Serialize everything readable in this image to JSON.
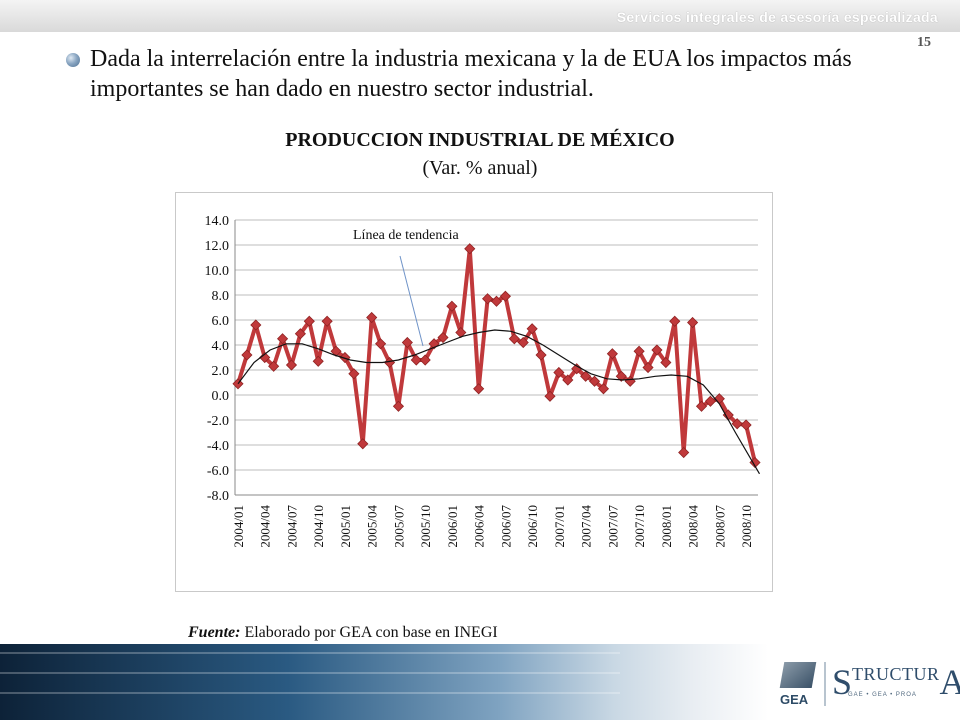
{
  "header": {
    "brand": "Servicios integrales de asesoría especializada",
    "page_number": "15"
  },
  "body": {
    "bullet_text": "Dada la interrelación entre la industria mexicana y la de EUA los impactos más importantes se han dado en nuestro sector industrial."
  },
  "source": {
    "label": "Fuente:",
    "text": " Elaborado por GEA con base en INEGI"
  },
  "logos": {
    "gea": "GEA",
    "structura_s": "S",
    "structura_mid": "TRUCTUR",
    "structura_a": "A",
    "structura_sub": "GAE • GEA • PROA"
  },
  "colors": {
    "series": "#c0393b",
    "trend": "#111111",
    "grid": "#bdbdbd"
  },
  "chart_data": {
    "type": "line",
    "title": "PRODUCCION INDUSTRIAL DE MÉXICO",
    "subtitle": "(Var. % anual)",
    "ylim": [
      -8,
      14
    ],
    "yticks": [
      "14.0",
      "12.0",
      "10.0",
      "8.0",
      "6.0",
      "4.0",
      "2.0",
      "0.0",
      "-2.0",
      "-4.0",
      "-6.0",
      "-8.0"
    ],
    "x_tick_labels": [
      "2004/01",
      "2004/04",
      "2004/07",
      "2004/10",
      "2005/01",
      "2005/04",
      "2005/07",
      "2005/10",
      "2006/01",
      "2006/04",
      "2006/07",
      "2006/10",
      "2007/01",
      "2007/04",
      "2007/07",
      "2007/10",
      "2008/01",
      "2008/04",
      "2008/07",
      "2008/10"
    ],
    "grid": true,
    "annotation": {
      "text": "Línea de tendencia"
    },
    "series": [
      {
        "values": [
          0.9,
          3.2,
          5.6,
          3.0,
          2.3,
          4.5,
          2.4,
          4.9,
          5.9,
          2.7,
          5.9,
          3.5,
          3.0,
          1.7,
          -3.9,
          6.2,
          4.1,
          2.6,
          -0.9,
          4.2,
          2.8,
          2.8,
          4.1,
          4.6,
          7.1,
          5.0,
          11.7,
          0.5,
          7.7,
          7.5,
          7.9,
          4.5,
          4.2,
          5.3,
          3.2,
          -0.1,
          1.8,
          1.2,
          2.1,
          1.5,
          1.1,
          0.5,
          3.3,
          1.5,
          1.1,
          3.5,
          2.2,
          3.6,
          2.6,
          5.9,
          -4.6,
          5.8,
          -0.9,
          -0.5,
          -0.3,
          -1.6,
          -2.3,
          -2.4,
          -5.4
        ]
      },
      {
        "type": "trend",
        "values": [
          0.9,
          2.6,
          3.6,
          4.1,
          4.1,
          3.7,
          3.2,
          2.8,
          2.6,
          2.6,
          2.8,
          3.2,
          3.7,
          4.2,
          4.7,
          5.0,
          5.2,
          5.1,
          4.7,
          4.0,
          3.2,
          2.4,
          1.7,
          1.3,
          1.2,
          1.3,
          1.5,
          1.6,
          1.5,
          0.8,
          -0.7,
          -3.0,
          -6.3
        ],
        "x_positions": [
          0,
          1.8,
          3.6,
          5.4,
          7.2,
          9,
          10.8,
          12.6,
          14.4,
          16.2,
          18,
          19.8,
          21.6,
          23.4,
          25.2,
          27,
          28.8,
          30.6,
          32.4,
          34.2,
          36,
          37.8,
          39.6,
          41.4,
          43.2,
          45,
          46.8,
          48.6,
          50.4,
          52.2,
          54,
          55.8,
          58.5
        ]
      }
    ]
  }
}
